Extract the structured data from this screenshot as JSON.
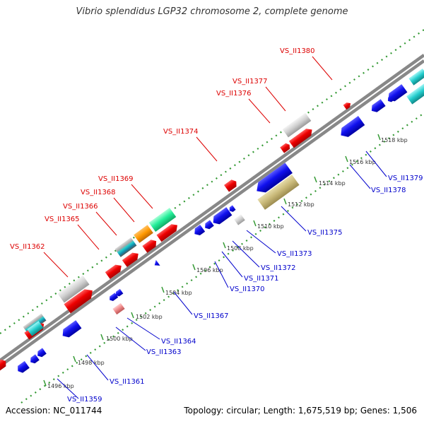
{
  "title": "Vibrio splendidus LGP32 chromosome 2, complete genome",
  "accession": "Accession: NC_011744",
  "summary": "Topology: circular; Length: 1,675,519 bp; Genes: 1,506",
  "colors": {
    "forward_label": "#dd0000",
    "reverse_label": "#0000cc",
    "axis": "#909090",
    "dots": "#339933"
  },
  "ticks": [
    {
      "label": "1496 kbp"
    },
    {
      "label": "1498 kbp"
    },
    {
      "label": "1500 kbp"
    },
    {
      "label": "1502 kbp"
    },
    {
      "label": "1504 kbp"
    },
    {
      "label": "1506 kbp"
    },
    {
      "label": "1508 kbp"
    },
    {
      "label": "1510 kbp"
    },
    {
      "label": "1512 kbp"
    },
    {
      "label": "1514 kbp"
    },
    {
      "label": "1516 kbp"
    },
    {
      "label": "1518 kbp"
    }
  ],
  "forward_genes": [
    {
      "label": "VS_II1362"
    },
    {
      "label": "VS_II1365"
    },
    {
      "label": "VS_II1366"
    },
    {
      "label": "VS_II1368"
    },
    {
      "label": "VS_II1369"
    },
    {
      "label": "VS_II1374"
    },
    {
      "label": "VS_II1376"
    },
    {
      "label": "VS_II1377"
    },
    {
      "label": "VS_II1380"
    }
  ],
  "reverse_genes": [
    {
      "label": "VS_II1359"
    },
    {
      "label": "VS_II1361"
    },
    {
      "label": "VS_II1363"
    },
    {
      "label": "VS_II1364"
    },
    {
      "label": "VS_II1367"
    },
    {
      "label": "VS_II1370"
    },
    {
      "label": "VS_II1371"
    },
    {
      "label": "VS_II1372"
    },
    {
      "label": "VS_II1373"
    },
    {
      "label": "VS_II1375"
    },
    {
      "label": "VS_II1378"
    },
    {
      "label": "VS_II1379"
    }
  ]
}
